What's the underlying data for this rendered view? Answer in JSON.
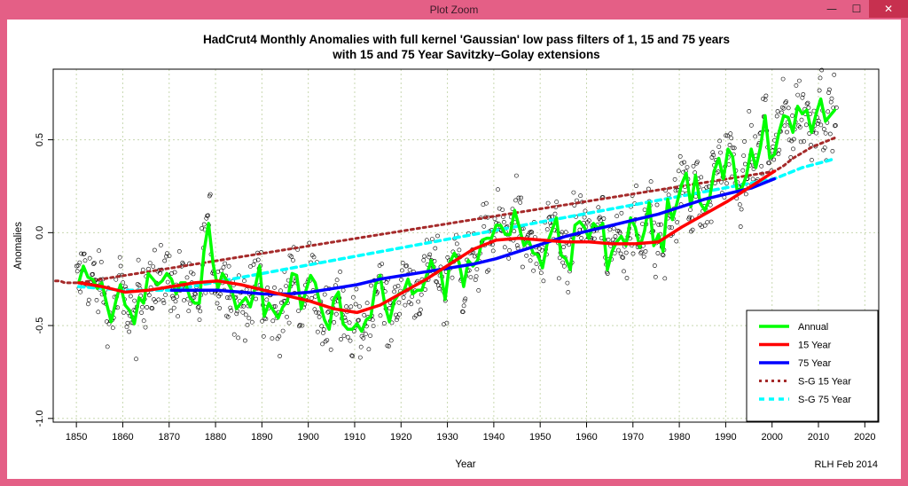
{
  "window": {
    "title": "Plot Zoom",
    "minimize_glyph": "—",
    "maximize_glyph": "☐",
    "close_glyph": "✕"
  },
  "chart_data": {
    "type": "line",
    "title_line1": "HadCrut4 Monthly Anomalies with full kernel 'Gaussian' low pass filters of 1, 15 and 75 years",
    "title_line2": "with 15 and 75 Year Savitzky–Golay extensions",
    "xlabel": "Year",
    "ylabel": "Anomalies",
    "credit": "RLH Feb 2014",
    "xlim": [
      1845,
      2023
    ],
    "ylim": [
      -1.02,
      0.88
    ],
    "xticks": [
      1850,
      1860,
      1870,
      1880,
      1890,
      1900,
      1910,
      1920,
      1930,
      1940,
      1950,
      1960,
      1970,
      1980,
      1990,
      2000,
      2010,
      2020
    ],
    "yticks": [
      -1.0,
      -0.5,
      0.0,
      0.5
    ],
    "ytick_labels": [
      "-1.0",
      "-0.5",
      "0.0",
      "0.5"
    ],
    "grid": true,
    "legend_position": "bottom-right",
    "colors": {
      "annual": "#00ff00",
      "y15": "#ff0000",
      "y75": "#0000ff",
      "sg15": "#a52a2a",
      "sg75": "#00ffff",
      "points": "#000000",
      "grid": "#c8d8b0"
    },
    "series": [
      {
        "name": "Annual",
        "x": [
          1850,
          1851,
          1852,
          1853,
          1854,
          1855,
          1856,
          1857,
          1858,
          1859,
          1860,
          1861,
          1862,
          1863,
          1864,
          1865,
          1866,
          1867,
          1868,
          1869,
          1870,
          1871,
          1872,
          1873,
          1874,
          1875,
          1876,
          1877,
          1878,
          1879,
          1880,
          1881,
          1882,
          1883,
          1884,
          1885,
          1886,
          1887,
          1888,
          1889,
          1890,
          1891,
          1892,
          1893,
          1894,
          1895,
          1896,
          1897,
          1898,
          1899,
          1900,
          1901,
          1902,
          1903,
          1904,
          1905,
          1906,
          1907,
          1908,
          1909,
          1910,
          1911,
          1912,
          1913,
          1914,
          1915,
          1916,
          1917,
          1918,
          1919,
          1920,
          1921,
          1922,
          1923,
          1924,
          1925,
          1926,
          1927,
          1928,
          1929,
          1930,
          1931,
          1932,
          1933,
          1934,
          1935,
          1936,
          1937,
          1938,
          1939,
          1940,
          1941,
          1942,
          1943,
          1944,
          1945,
          1946,
          1947,
          1948,
          1949,
          1950,
          1951,
          1952,
          1953,
          1954,
          1955,
          1956,
          1957,
          1958,
          1959,
          1960,
          1961,
          1962,
          1963,
          1964,
          1965,
          1966,
          1967,
          1968,
          1969,
          1970,
          1971,
          1972,
          1973,
          1974,
          1975,
          1976,
          1977,
          1978,
          1979,
          1980,
          1981,
          1982,
          1983,
          1984,
          1985,
          1986,
          1987,
          1988,
          1989,
          1990,
          1991,
          1992,
          1993,
          1994,
          1995,
          1996,
          1997,
          1998,
          1999,
          2000,
          2001,
          2002,
          2003,
          2004,
          2005,
          2006,
          2007,
          2008,
          2009,
          2010,
          2011,
          2012,
          2013
        ],
        "values": [
          -0.27,
          -0.18,
          -0.24,
          -0.25,
          -0.3,
          -0.27,
          -0.38,
          -0.48,
          -0.37,
          -0.28,
          -0.39,
          -0.42,
          -0.49,
          -0.35,
          -0.38,
          -0.22,
          -0.25,
          -0.28,
          -0.26,
          -0.22,
          -0.25,
          -0.33,
          -0.27,
          -0.27,
          -0.35,
          -0.38,
          -0.38,
          -0.1,
          0.05,
          -0.17,
          -0.3,
          -0.22,
          -0.26,
          -0.31,
          -0.41,
          -0.38,
          -0.35,
          -0.4,
          -0.3,
          -0.18,
          -0.45,
          -0.38,
          -0.42,
          -0.46,
          -0.4,
          -0.37,
          -0.22,
          -0.23,
          -0.41,
          -0.31,
          -0.23,
          -0.27,
          -0.38,
          -0.47,
          -0.52,
          -0.36,
          -0.32,
          -0.49,
          -0.52,
          -0.52,
          -0.49,
          -0.53,
          -0.47,
          -0.45,
          -0.28,
          -0.23,
          -0.39,
          -0.48,
          -0.37,
          -0.33,
          -0.32,
          -0.25,
          -0.33,
          -0.31,
          -0.31,
          -0.23,
          -0.15,
          -0.22,
          -0.2,
          -0.36,
          -0.16,
          -0.11,
          -0.16,
          -0.29,
          -0.15,
          -0.18,
          -0.15,
          -0.04,
          -0.03,
          -0.03,
          0.04,
          0.04,
          -0.01,
          -0.01,
          0.12,
          0.03,
          -0.07,
          -0.04,
          -0.11,
          -0.12,
          -0.19,
          -0.06,
          0.01,
          0.08,
          -0.12,
          -0.14,
          -0.2,
          0.04,
          0.06,
          0.03,
          -0.03,
          0.05,
          0.02,
          0.05,
          -0.2,
          -0.1,
          -0.05,
          -0.02,
          -0.07,
          0.08,
          0.03,
          -0.08,
          0.01,
          0.16,
          -0.07,
          -0.01,
          -0.1,
          0.18,
          0.07,
          0.16,
          0.26,
          0.32,
          0.14,
          0.31,
          0.16,
          0.12,
          0.18,
          0.33,
          0.4,
          0.29,
          0.45,
          0.41,
          0.22,
          0.24,
          0.31,
          0.45,
          0.35,
          0.46,
          0.63,
          0.4,
          0.42,
          0.54,
          0.63,
          0.62,
          0.54,
          0.68,
          0.64,
          0.66,
          0.54,
          0.64,
          0.72,
          0.6,
          0.63,
          0.66
        ]
      },
      {
        "name": "15 Year",
        "x": [
          1850,
          1855,
          1860,
          1865,
          1870,
          1875,
          1880,
          1885,
          1890,
          1895,
          1900,
          1905,
          1910,
          1915,
          1920,
          1925,
          1930,
          1935,
          1940,
          1945,
          1950,
          1955,
          1960,
          1965,
          1970,
          1975,
          1980,
          1985,
          1990,
          1995,
          2000
        ],
        "values": [
          -0.27,
          -0.29,
          -0.32,
          -0.31,
          -0.29,
          -0.27,
          -0.26,
          -0.28,
          -0.31,
          -0.34,
          -0.37,
          -0.41,
          -0.43,
          -0.39,
          -0.32,
          -0.25,
          -0.17,
          -0.09,
          -0.04,
          -0.03,
          -0.04,
          -0.05,
          -0.05,
          -0.06,
          -0.06,
          -0.05,
          0.03,
          0.1,
          0.17,
          0.25,
          0.33
        ]
      },
      {
        "name": "75 Year",
        "x": [
          1870,
          1875,
          1880,
          1885,
          1890,
          1895,
          1900,
          1905,
          1910,
          1915,
          1920,
          1925,
          1930,
          1935,
          1940,
          1945,
          1950,
          1955,
          1960,
          1965,
          1970,
          1975,
          1980,
          1985,
          1990,
          1995,
          2000
        ],
        "values": [
          -0.31,
          -0.31,
          -0.31,
          -0.32,
          -0.33,
          -0.33,
          -0.32,
          -0.3,
          -0.28,
          -0.25,
          -0.23,
          -0.21,
          -0.19,
          -0.17,
          -0.14,
          -0.1,
          -0.06,
          -0.02,
          0.01,
          0.04,
          0.07,
          0.1,
          0.14,
          0.18,
          0.21,
          0.24,
          0.29
        ]
      },
      {
        "name": "S-G 15 Year",
        "x": [
          1845,
          1846,
          1847,
          1848,
          1849,
          1850,
          2000,
          2002,
          2004,
          2006,
          2008,
          2010,
          2012,
          2013
        ],
        "values": [
          -0.26,
          -0.26,
          -0.27,
          -0.27,
          -0.27,
          -0.27,
          0.33,
          0.36,
          0.4,
          0.43,
          0.46,
          0.48,
          0.5,
          0.51
        ]
      },
      {
        "name": "S-G 75 Year",
        "x": [
          1850,
          1855,
          1860,
          1865,
          1870,
          2000,
          2003,
          2006,
          2009,
          2012,
          2013
        ],
        "values": [
          -0.29,
          -0.3,
          -0.31,
          -0.31,
          -0.31,
          0.29,
          0.32,
          0.35,
          0.37,
          0.39,
          0.4
        ]
      }
    ],
    "legend": [
      "Annual",
      "15 Year",
      "75 Year",
      "S-G 15 Year",
      "S-G 75 Year"
    ]
  }
}
